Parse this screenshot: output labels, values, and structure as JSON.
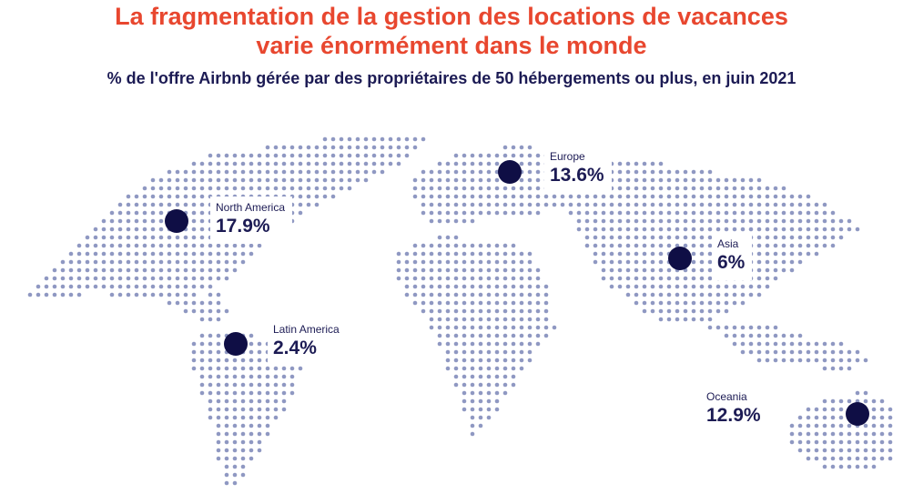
{
  "header": {
    "title_line_1": "La fragmentation de la gestion des locations de vacances",
    "title_line_2": "varie énormément dans le monde",
    "subtitle": "% de l'offre Airbnb gérée par des propriétaires de 50 hébergements ou plus, en juin 2021"
  },
  "colors": {
    "title": "#e8472f",
    "subtitle": "#1c1b54",
    "marker": "#0f0e45",
    "land_dots": "#8f98c2"
  },
  "chart_data": {
    "type": "table",
    "map": "dotted world map",
    "unit": "%",
    "regions": [
      {
        "name": "North America",
        "value": "17.9%"
      },
      {
        "name": "Europe",
        "value": "13.6%"
      },
      {
        "name": "Asia",
        "value": "6%"
      },
      {
        "name": "Latin America",
        "value": "2.4%"
      },
      {
        "name": "Oceania",
        "value": "12.9%"
      }
    ]
  }
}
